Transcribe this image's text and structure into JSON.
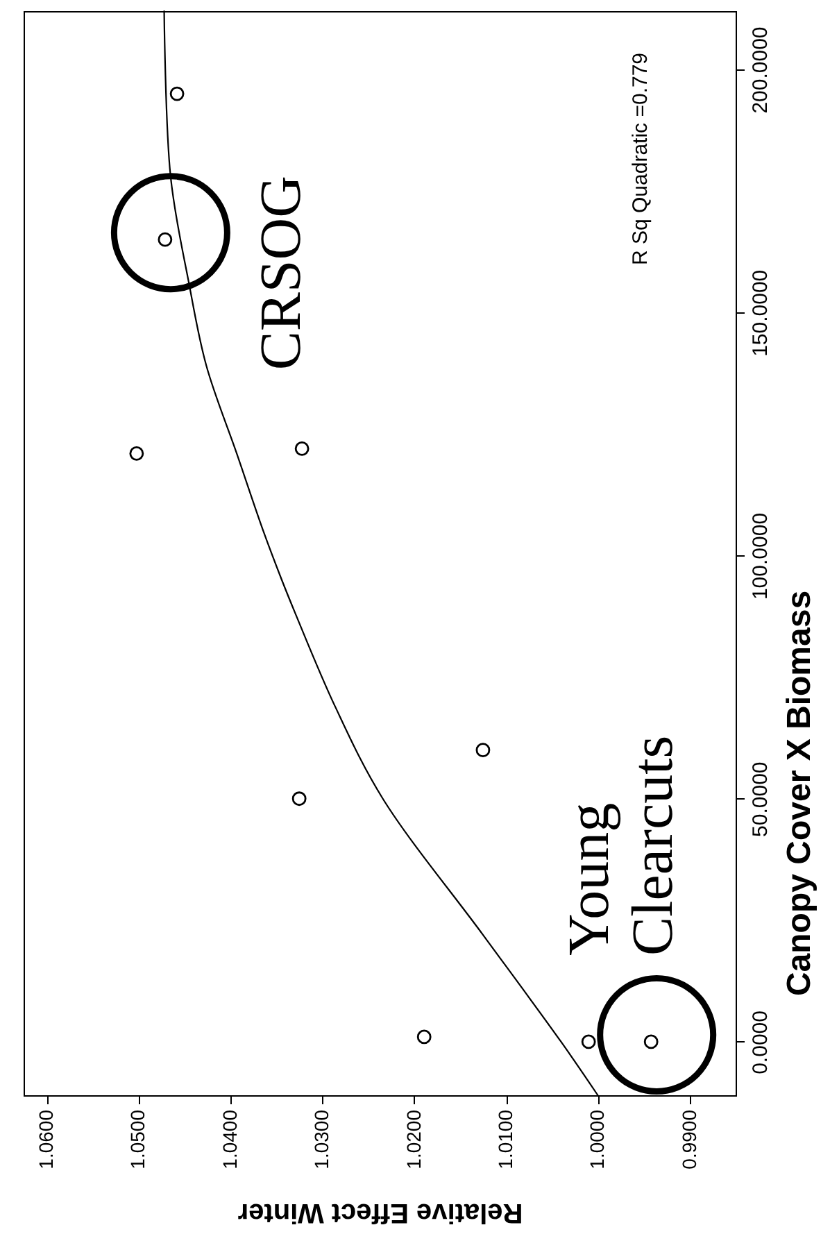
{
  "chart_data": {
    "type": "scatter",
    "xlabel": "Relative Effect Winter",
    "ylabel": "Canopy Cover X Biomass",
    "xlim": [
      1.0625,
      0.985
    ],
    "ylim": [
      -11,
      212
    ],
    "xticks": [
      {
        "value": 0.99,
        "label": "0.9900"
      },
      {
        "value": 1.0,
        "label": "1.0000"
      },
      {
        "value": 1.01,
        "label": "1.0100"
      },
      {
        "value": 1.02,
        "label": "1.0200"
      },
      {
        "value": 1.03,
        "label": "1.0300"
      },
      {
        "value": 1.04,
        "label": "1.0400"
      },
      {
        "value": 1.05,
        "label": "1.0500"
      },
      {
        "value": 1.06,
        "label": "1.0600"
      }
    ],
    "yticks": [
      {
        "value": 0,
        "label": "0.0000"
      },
      {
        "value": 50,
        "label": "50.0000"
      },
      {
        "value": 100,
        "label": "100.0000"
      },
      {
        "value": 150,
        "label": "150.0000"
      },
      {
        "value": 200,
        "label": "200.0000"
      }
    ],
    "series": [
      {
        "type": "scatter",
        "marker": "circle",
        "color": "#000000",
        "x": [
          0.9942,
          1.001,
          1.0189,
          1.0325,
          1.0125,
          1.0502,
          1.0322,
          1.0471,
          1.0458
        ],
        "values": [
          0,
          0,
          1,
          50,
          60,
          121,
          122,
          165,
          195
        ]
      },
      {
        "type": "line",
        "color": "#000000",
        "x": [
          1.0,
          1.004,
          1.0125,
          1.0234,
          1.0286,
          1.0329,
          1.0344,
          1.0364,
          1.0393,
          1.0426,
          1.0445,
          1.0465,
          1.0472
        ],
        "values": [
          -11,
          0,
          22,
          50,
          69,
          88,
          95,
          105,
          121,
          139,
          156,
          178,
          212
        ]
      }
    ],
    "annotations": [
      {
        "text": "Young Clearcuts",
        "x": 0.9942,
        "y": 0
      },
      {
        "text": "CRSOG",
        "x": 1.0471,
        "y": 165
      },
      "R Sq Quadratic =0.779"
    ]
  }
}
